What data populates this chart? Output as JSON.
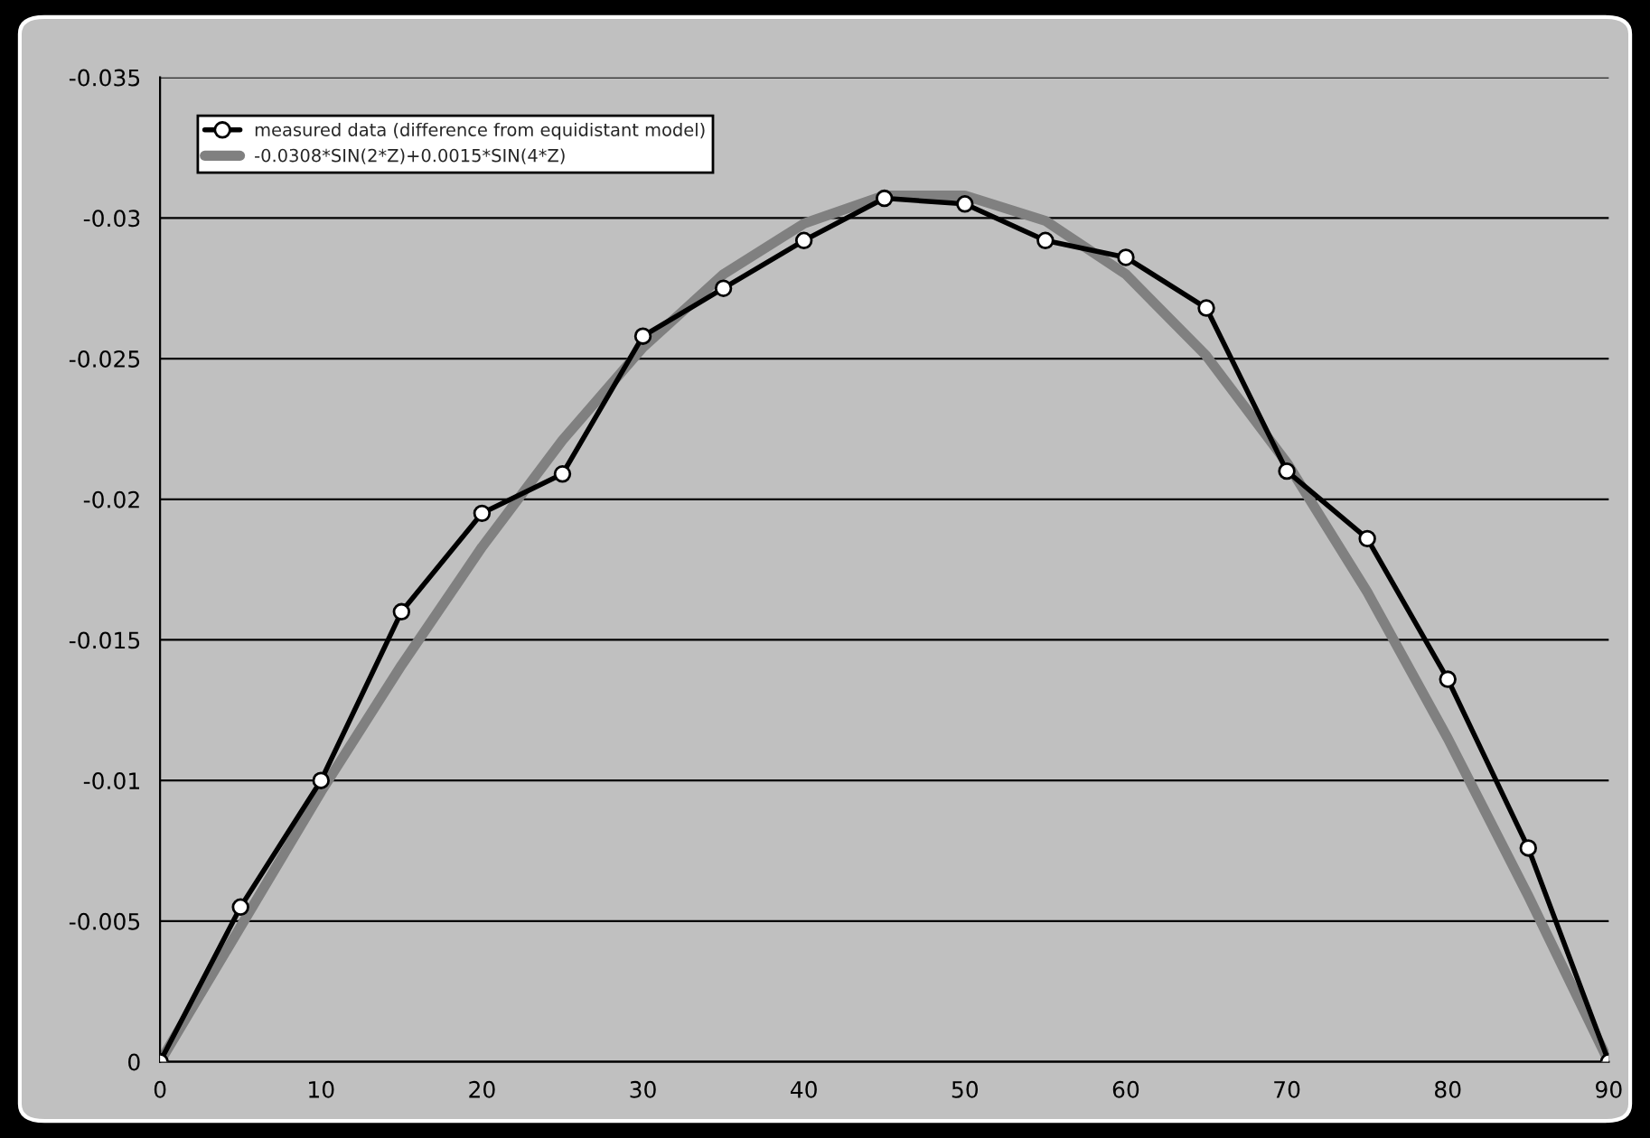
{
  "chart_data": {
    "type": "line",
    "x": [
      0,
      5,
      10,
      15,
      20,
      25,
      30,
      35,
      40,
      45,
      50,
      55,
      60,
      65,
      70,
      75,
      80,
      85,
      90
    ],
    "series": [
      {
        "name": "measured data (difference from equidistant model)",
        "color": "#000000",
        "marker": "circle",
        "values": [
          0,
          -0.0055,
          -0.01,
          -0.016,
          -0.0195,
          -0.0209,
          -0.0258,
          -0.0275,
          -0.0292,
          -0.0307,
          -0.0305,
          -0.0292,
          -0.0286,
          -0.0268,
          -0.021,
          -0.0186,
          -0.0136,
          -0.0076,
          0
        ]
      },
      {
        "name": "-0.0308*SIN(2*Z)+0.0015*SIN(4*Z)",
        "color": "#808080",
        "marker": "none",
        "values": [
          0,
          -0.0048,
          -0.0096,
          -0.0141,
          -0.0183,
          -0.0221,
          -0.0254,
          -0.028,
          -0.0298,
          -0.0308,
          -0.0308,
          -0.0299,
          -0.028,
          -0.0251,
          -0.0213,
          -0.0167,
          -0.0115,
          -0.0059,
          0
        ]
      }
    ],
    "xlim": [
      0,
      90
    ],
    "xticks": [
      0,
      10,
      20,
      30,
      40,
      50,
      60,
      70,
      80,
      90
    ],
    "ylim": [
      0,
      -0.035
    ],
    "yticks": [
      0,
      -0.005,
      -0.01,
      -0.015,
      -0.02,
      -0.025,
      -0.03,
      -0.035
    ],
    "grid": "y",
    "legend": "top left",
    "line_style": "solid"
  }
}
